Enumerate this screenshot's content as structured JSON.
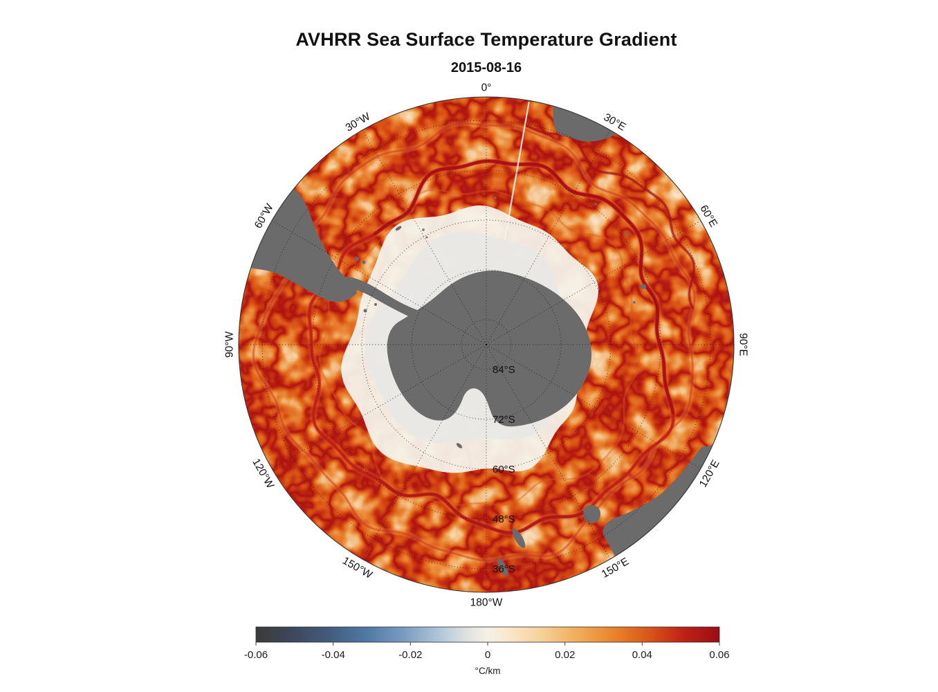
{
  "chart_data": {
    "type": "heatmap",
    "title": "AVHRR Sea Surface Temperature Gradient",
    "subtitle": "2015-08-16",
    "projection": "south_polar_stereographic",
    "meridian_labels": [
      {
        "label": "0°",
        "angle_deg": 0
      },
      {
        "label": "30°E",
        "angle_deg": 30
      },
      {
        "label": "60°E",
        "angle_deg": 60
      },
      {
        "label": "90°E",
        "angle_deg": 90
      },
      {
        "label": "120°E",
        "angle_deg": 120
      },
      {
        "label": "150°E",
        "angle_deg": 150
      },
      {
        "label": "180°W",
        "angle_deg": 180
      },
      {
        "label": "150°W",
        "angle_deg": -150
      },
      {
        "label": "120°W",
        "angle_deg": -120
      },
      {
        "label": "90°W",
        "angle_deg": -90
      },
      {
        "label": "60°W",
        "angle_deg": -60
      },
      {
        "label": "30°W",
        "angle_deg": -30
      }
    ],
    "parallel_labels": [
      {
        "label": "84°S",
        "latitude_deg": -84
      },
      {
        "label": "72°S",
        "latitude_deg": -72
      },
      {
        "label": "60°S",
        "latitude_deg": -60
      },
      {
        "label": "48°S",
        "latitude_deg": -48
      },
      {
        "label": "36°S",
        "latitude_deg": -36
      }
    ],
    "graticule": {
      "meridian_interval_deg": 30,
      "parallel_interval_deg": 12,
      "style": "dotted"
    },
    "colorbar": {
      "orientation": "horizontal",
      "position": "bottom",
      "min": -0.06,
      "max": 0.06,
      "tick_values": [
        -0.06,
        -0.04,
        -0.02,
        0,
        0.02,
        0.04,
        0.06
      ],
      "tick_labels": [
        "-0.06",
        "-0.04",
        "-0.02",
        "0",
        "0.02",
        "0.04",
        "0.06"
      ],
      "unit_label": "°C/km",
      "gradient": [
        [
          0,
          "#3b3b3b"
        ],
        [
          7,
          "#3d4658"
        ],
        [
          15,
          "#42597a"
        ],
        [
          24,
          "#4f7aa5"
        ],
        [
          32,
          "#7b9cc0"
        ],
        [
          40,
          "#b4c9db"
        ],
        [
          46,
          "#e2e3e0"
        ],
        [
          50,
          "#f4f0e6"
        ],
        [
          54,
          "#f9e9cf"
        ],
        [
          62,
          "#f6cf96"
        ],
        [
          70,
          "#f1a955"
        ],
        [
          78,
          "#e87f28"
        ],
        [
          85,
          "#d9541a"
        ],
        [
          92,
          "#c02317"
        ],
        [
          100,
          "#9c0c14"
        ]
      ]
    },
    "map_colors": {
      "land": "#6b6b6b",
      "sea_ice": "#f4f1ea",
      "ocean_background": "#fcf1e2",
      "front_strong": "#b01217"
    }
  }
}
